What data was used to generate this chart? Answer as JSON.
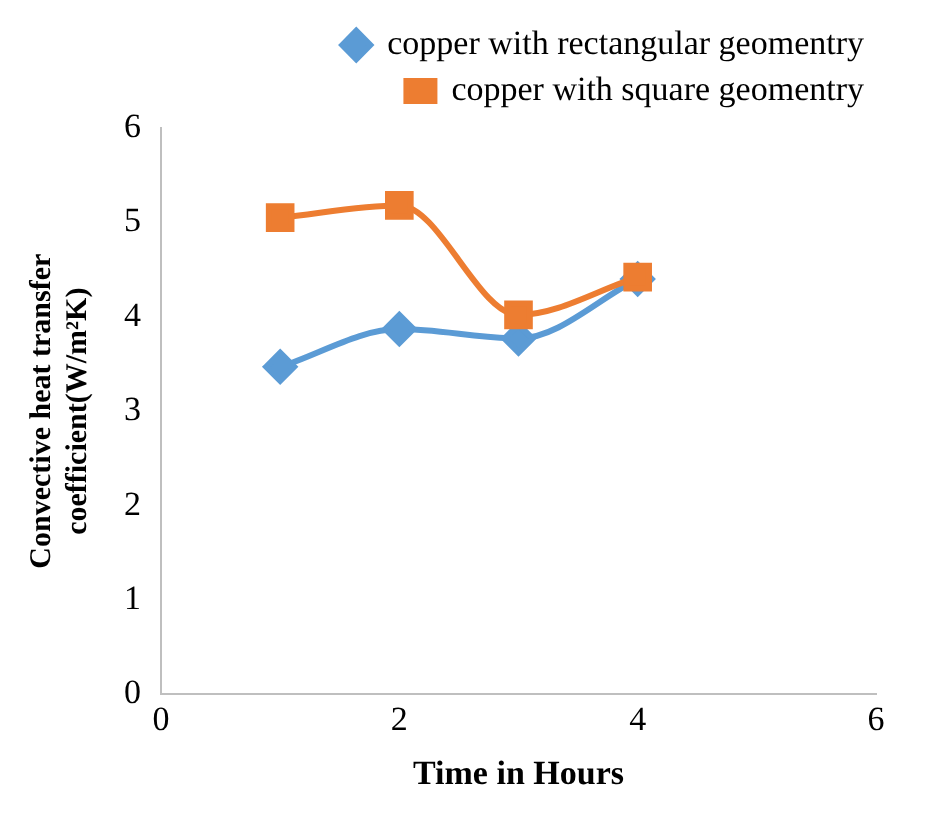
{
  "chart_data": {
    "type": "line",
    "xlabel": "Time in Hours",
    "ylabel": "Convective heat transfer coefficient(W/m²K)",
    "xlim": [
      0,
      6
    ],
    "xticks": [
      0,
      2,
      4,
      6
    ],
    "ylim": [
      0,
      6
    ],
    "yticks": [
      0,
      1,
      2,
      3,
      4,
      5,
      6
    ],
    "grid": false,
    "legend": "top right",
    "series": [
      {
        "name": "copper with rectangular geomentry",
        "color": "#5b9bd5",
        "marker": "diamond",
        "x": [
          1,
          2,
          3,
          4
        ],
        "values": [
          3.47,
          3.87,
          3.77,
          4.4
        ]
      },
      {
        "name": "copper with square geomentry",
        "color": "#ed7d31",
        "marker": "square",
        "x": [
          1,
          2,
          3,
          4
        ],
        "values": [
          5.05,
          5.18,
          4.02,
          4.42
        ]
      }
    ]
  }
}
